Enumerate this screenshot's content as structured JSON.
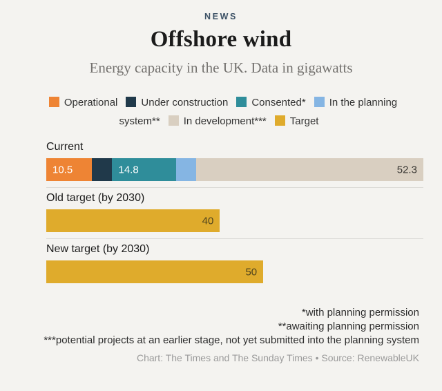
{
  "header": {
    "kicker": "NEWS",
    "title": "Offshore wind",
    "subtitle": "Energy capacity in the UK. Data in gigawatts"
  },
  "colors": {
    "background": "#F4F3F0",
    "operational": "#EE8434",
    "under_construction": "#20394A",
    "consented": "#2F8D9A",
    "planning": "#85B5E3",
    "in_development": "#D9CFC1",
    "target": "#DFAB2C",
    "separator": "#DBDAD6"
  },
  "legend": {
    "items": [
      {
        "color_key": "operational",
        "label": "Operational"
      },
      {
        "color_key": "under_construction",
        "label": "Under construction"
      },
      {
        "color_key": "consented",
        "label": "Consented*"
      },
      {
        "color_key": "planning",
        "label": "In the planning system**"
      },
      {
        "color_key": "in_development",
        "label": "In development***"
      },
      {
        "color_key": "target",
        "label": "Target"
      }
    ]
  },
  "chart_data": {
    "type": "bar",
    "orientation": "horizontal-stacked",
    "title": "Offshore wind",
    "subtitle": "Energy capacity in the UK. Data in gigawatts",
    "unit": "gigawatts",
    "xlim": [
      0,
      86.9
    ],
    "grid": false,
    "legend_position": "top-center",
    "rows": [
      {
        "label": "Current",
        "segments": [
          {
            "name": "Operational",
            "color_key": "operational",
            "value": 10.5,
            "value_label": "10.5",
            "label_style": "vl-light",
            "label_align": "vl-left"
          },
          {
            "name": "Under construction",
            "color_key": "under_construction",
            "value": 4.7,
            "value_label": "",
            "label_style": "",
            "label_align": ""
          },
          {
            "name": "Consented",
            "color_key": "consented",
            "value": 14.8,
            "value_label": "14.8",
            "label_style": "vl-light",
            "label_align": "vl-left"
          },
          {
            "name": "In the planning system",
            "color_key": "planning",
            "value": 4.6,
            "value_label": "",
            "label_style": "",
            "label_align": ""
          },
          {
            "name": "In development",
            "color_key": "in_development",
            "value": 52.3,
            "value_label": "52.3",
            "label_style": "vl-dark",
            "label_align": "vl-right"
          }
        ]
      },
      {
        "label": "Old target (by 2030)",
        "segments": [
          {
            "name": "Target",
            "color_key": "target",
            "value": 40,
            "value_label": "40",
            "label_style": "vl-gold",
            "label_align": "vl-right"
          }
        ]
      },
      {
        "label": "New target (by 2030)",
        "segments": [
          {
            "name": "Target",
            "color_key": "target",
            "value": 50,
            "value_label": "50",
            "label_style": "vl-gold",
            "label_align": "vl-right"
          }
        ]
      }
    ]
  },
  "footnotes": {
    "lines": [
      "*with planning permission",
      "**awaiting planning permission",
      "***potential projects at an earlier stage, not yet submitted into the planning system"
    ]
  },
  "credit": "Chart: The Times and The Sunday Times • Source: RenewableUK"
}
